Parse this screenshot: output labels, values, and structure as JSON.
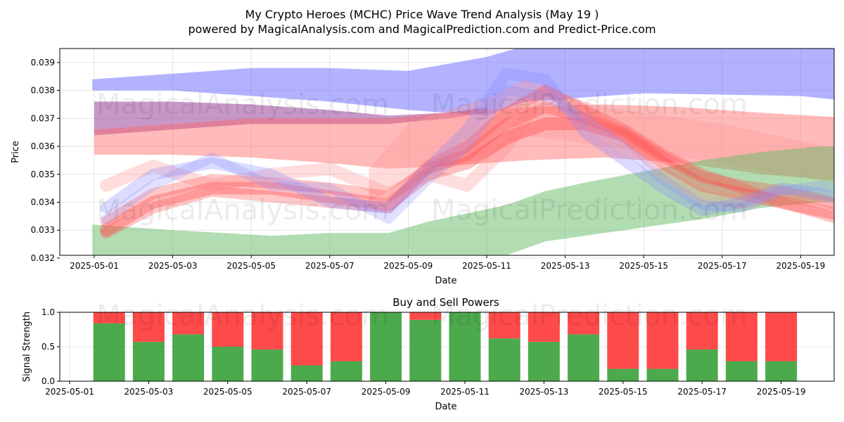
{
  "header": {
    "title": "My Crypto Heroes (MCHC) Price Wave Trend Analysis (May 19 )",
    "subtitle": "powered by MagicalAnalysis.com and MagicalPrediction.com and Predict-Price.com"
  },
  "watermarks": {
    "left": "MagicalAnalysis.com",
    "right": "MagicalPrediction.com"
  },
  "chart_data": [
    {
      "type": "area",
      "xlabel": "Date",
      "ylabel": "Price",
      "ylim": [
        0.0321,
        0.0395
      ],
      "x_ticks": [
        "2025-05-01",
        "2025-05-03",
        "2025-05-05",
        "2025-05-07",
        "2025-05-09",
        "2025-05-11",
        "2025-05-13",
        "2025-05-15",
        "2025-05-17",
        "2025-05-19"
      ],
      "y_ticks": [
        0.032,
        0.033,
        0.034,
        0.035,
        0.036,
        0.037,
        0.038,
        0.039
      ],
      "grid": true,
      "bands": [
        {
          "color": "#6666ff",
          "opacity": 0.5,
          "x": [
            -0.05,
            2,
            4,
            6,
            8,
            10,
            11,
            14,
            18,
            19.35
          ],
          "upper": [
            0.0384,
            0.0386,
            0.0388,
            0.0388,
            0.0387,
            0.0392,
            0.0396,
            0.0398,
            0.0397,
            0.0396
          ],
          "lower": [
            0.038,
            0.038,
            0.0378,
            0.0376,
            0.0373,
            0.0371,
            0.0376,
            0.0379,
            0.0378,
            0.0376
          ]
        },
        {
          "color": "#994499",
          "opacity": 0.55,
          "x": [
            0,
            2,
            4,
            6,
            7.5,
            9,
            10
          ],
          "upper": [
            0.0376,
            0.0376,
            0.0375,
            0.0373,
            0.0371,
            0.0372,
            0.0374
          ],
          "lower": [
            0.0364,
            0.0366,
            0.0368,
            0.0368,
            0.0368,
            0.037,
            0.0372
          ]
        },
        {
          "color": "#ff6666",
          "opacity": 0.45,
          "x": [
            0,
            2,
            4,
            6,
            7.5,
            9,
            11,
            13,
            15,
            17,
            19.5
          ],
          "upper": [
            0.0366,
            0.0368,
            0.037,
            0.037,
            0.037,
            0.0372,
            0.0374,
            0.0375,
            0.0374,
            0.0372,
            0.037
          ],
          "lower": [
            0.0357,
            0.0357,
            0.0356,
            0.0354,
            0.0352,
            0.0353,
            0.0355,
            0.0356,
            0.0354,
            0.035,
            0.0347
          ]
        },
        {
          "color": "#ff9999",
          "opacity": 0.35,
          "x": [
            7,
            8,
            9,
            10,
            11,
            12,
            13,
            14,
            15,
            16,
            17,
            18,
            19.2
          ],
          "upper": [
            0.0352,
            0.0368,
            0.0373,
            0.0377,
            0.0384,
            0.0378,
            0.0374,
            0.0372,
            0.037,
            0.0368,
            0.0365,
            0.0362,
            0.0358
          ],
          "lower": [
            0.034,
            0.0348,
            0.0352,
            0.0356,
            0.0364,
            0.0362,
            0.036,
            0.0358,
            0.0356,
            0.0354,
            0.0351,
            0.0349,
            0.0346
          ]
        },
        {
          "color": "#66bb66",
          "opacity": 0.5,
          "x": [
            -0.05,
            2,
            4.5,
            6,
            7.5,
            8.5,
            9.5,
            10.5,
            11.5,
            12.5,
            14,
            15.5,
            17,
            18.5,
            19.35
          ],
          "upper": [
            0.0332,
            0.033,
            0.0328,
            0.0329,
            0.0329,
            0.0333,
            0.0336,
            0.0339,
            0.0344,
            0.0347,
            0.0351,
            0.0355,
            0.0358,
            0.036,
            0.036
          ],
          "lower": [
            0.0314,
            0.031,
            0.0308,
            0.0308,
            0.031,
            0.0313,
            0.0316,
            0.0321,
            0.0326,
            0.0328,
            0.0331,
            0.0334,
            0.0338,
            0.034,
            0.0341
          ]
        }
      ],
      "waves": [
        {
          "color": "#ff4444",
          "opacity": 0.35,
          "width": 18,
          "x": [
            0.3,
            1.5,
            3,
            4.5,
            6,
            7.5,
            8.5,
            9.5,
            10.5,
            11.5,
            12.5,
            13.5,
            14.5,
            15.5,
            16.5,
            17.5,
            18.5,
            19.2
          ],
          "y": [
            0.033,
            0.034,
            0.0345,
            0.0345,
            0.0342,
            0.0339,
            0.035,
            0.0354,
            0.0363,
            0.0368,
            0.0368,
            0.0364,
            0.0354,
            0.0346,
            0.0343,
            0.034,
            0.0337,
            0.0335
          ]
        },
        {
          "color": "#ff4444",
          "opacity": 0.3,
          "width": 16,
          "x": [
            0.3,
            1.5,
            3,
            4.5,
            6,
            7.5,
            8.5,
            9.5,
            10.5,
            11.5,
            12.5,
            13.5,
            14.5,
            15.5,
            16.5,
            17.5,
            18.5,
            19.2
          ],
          "y": [
            0.0333,
            0.0343,
            0.0348,
            0.0347,
            0.0345,
            0.0342,
            0.0352,
            0.0357,
            0.0368,
            0.0374,
            0.037,
            0.0365,
            0.0356,
            0.0349,
            0.0346,
            0.0344,
            0.0341,
            0.0338
          ]
        },
        {
          "color": "#ff4444",
          "opacity": 0.3,
          "width": 16,
          "x": [
            0.3,
            1.5,
            3,
            4.5,
            6,
            7.5,
            8.5,
            9.5,
            10.5,
            11.5,
            12.5,
            13.5,
            14.5,
            15.5,
            16.5,
            17.5,
            18.5,
            19.2
          ],
          "y": [
            0.0329,
            0.0338,
            0.0344,
            0.0342,
            0.034,
            0.0338,
            0.0353,
            0.036,
            0.0372,
            0.038,
            0.0373,
            0.0366,
            0.0357,
            0.035,
            0.0345,
            0.034,
            0.0336,
            0.0333
          ]
        },
        {
          "color": "#ff7777",
          "opacity": 0.25,
          "width": 18,
          "x": [
            0.3,
            1.5,
            3,
            4.5,
            6,
            7.5,
            8.5,
            9.5,
            10.5,
            11.5,
            12.5,
            13.5,
            14.5,
            15.5,
            16.5,
            17.5,
            18.5,
            19.2
          ],
          "y": [
            0.0346,
            0.0353,
            0.0346,
            0.035,
            0.0352,
            0.0343,
            0.035,
            0.0346,
            0.036,
            0.038,
            0.0372,
            0.0364,
            0.035,
            0.0342,
            0.034,
            0.0342,
            0.034,
            0.0338
          ]
        },
        {
          "color": "#8888ff",
          "opacity": 0.3,
          "width": 16,
          "x": [
            0.3,
            1.5,
            3,
            4.5,
            6,
            7.5,
            8.5,
            9.5,
            10.5,
            11.5,
            12.5,
            13.5,
            14.5,
            15.5,
            16.5,
            17.5,
            18.5,
            19.2
          ],
          "y": [
            0.0338,
            0.035,
            0.0354,
            0.035,
            0.034,
            0.0338,
            0.0352,
            0.0366,
            0.0386,
            0.0384,
            0.0365,
            0.0355,
            0.0345,
            0.0337,
            0.034,
            0.0345,
            0.0343,
            0.034
          ]
        },
        {
          "color": "#8888ff",
          "opacity": 0.25,
          "width": 14,
          "x": [
            0.3,
            1.5,
            3,
            4.5,
            6,
            7.5,
            8.5,
            9.5,
            10.5,
            11.5,
            12.5,
            13.5,
            14.5,
            15.5,
            16.5,
            17.5,
            18.5,
            19.2
          ],
          "y": [
            0.0334,
            0.0346,
            0.0356,
            0.0346,
            0.0345,
            0.0334,
            0.0348,
            0.036,
            0.038,
            0.0378,
            0.037,
            0.036,
            0.0348,
            0.0339,
            0.0338,
            0.0344,
            0.0346,
            0.0344
          ]
        }
      ]
    },
    {
      "type": "bar",
      "title": "Buy and Sell Powers",
      "xlabel": "Date",
      "ylabel": "Signal Strength",
      "ylim": [
        0,
        1
      ],
      "x_ticks": [
        "2025-05-01",
        "2025-05-03",
        "2025-05-05",
        "2025-05-07",
        "2025-05-09",
        "2025-05-11",
        "2025-05-13",
        "2025-05-15",
        "2025-05-17",
        "2025-05-19"
      ],
      "y_ticks": [
        "0.0",
        "0.5",
        "1.0"
      ],
      "grid": true,
      "categories": [
        "2025-05-02",
        "2025-05-03",
        "2025-05-04",
        "2025-05-05",
        "2025-05-06",
        "2025-05-07",
        "2025-05-08",
        "2025-05-09",
        "2025-05-10",
        "2025-05-11",
        "2025-05-12",
        "2025-05-13",
        "2025-05-14",
        "2025-05-15",
        "2025-05-16",
        "2025-05-17",
        "2025-05-18",
        "2025-05-19"
      ],
      "series": [
        {
          "color": "#4caa4c",
          "values": [
            0.84,
            0.57,
            0.68,
            0.5,
            0.46,
            0.23,
            0.29,
            1.0,
            0.89,
            1.0,
            0.62,
            0.57,
            0.68,
            0.18,
            0.18,
            0.46,
            0.29,
            0.29
          ]
        },
        {
          "color": "#ff4a4a",
          "values": [
            0.16,
            0.43,
            0.32,
            0.5,
            0.54,
            0.77,
            0.71,
            0.0,
            0.11,
            0.0,
            0.38,
            0.43,
            0.32,
            0.82,
            0.82,
            0.54,
            0.71,
            0.71
          ]
        }
      ]
    }
  ]
}
